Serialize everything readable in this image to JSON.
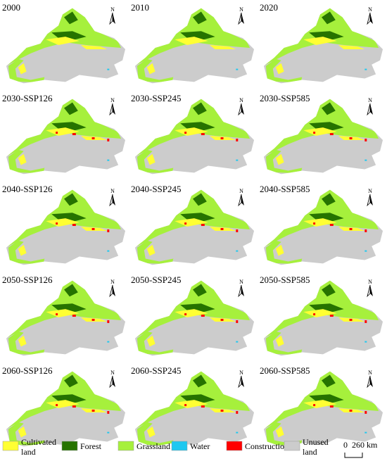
{
  "panels": [
    {
      "label": "2000"
    },
    {
      "label": "2010"
    },
    {
      "label": "2020"
    },
    {
      "label": "2030-SSP126"
    },
    {
      "label": "2030-SSP245"
    },
    {
      "label": "2030-SSP585"
    },
    {
      "label": "2040-SSP126"
    },
    {
      "label": "2040-SSP245"
    },
    {
      "label": "2040-SSP585"
    },
    {
      "label": "2050-SSP126"
    },
    {
      "label": "2050-SSP245"
    },
    {
      "label": "2050-SSP585"
    },
    {
      "label": "2060-SSP126"
    },
    {
      "label": "2060-SSP245"
    },
    {
      "label": "2060-SSP585"
    }
  ],
  "north_label": "N",
  "legend": [
    {
      "lines": [
        "Cultivated",
        "land"
      ],
      "color": "#ffff33"
    },
    {
      "lines": [
        "Forest"
      ],
      "color": "#267300"
    },
    {
      "lines": [
        "Grassland"
      ],
      "color": "#a6f03c"
    },
    {
      "lines": [
        "Water"
      ],
      "color": "#1ec8f0"
    },
    {
      "lines": [
        "Construction"
      ],
      "color": "#ff0000"
    },
    {
      "lines": [
        "Unused",
        "land"
      ],
      "color": "#cccccc"
    }
  ],
  "scale_bar": {
    "zero": "0",
    "distance": "260 km"
  }
}
